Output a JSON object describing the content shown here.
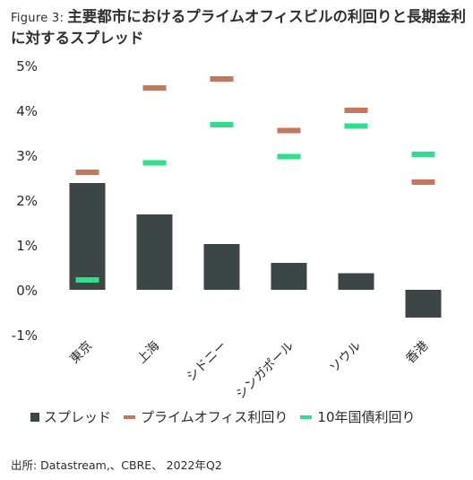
{
  "title": {
    "lead": "Figure 3:",
    "text": "主要都市におけるプライムオフィスビルの利回りと長期金利に対するスプレッド"
  },
  "chart_data": {
    "type": "bar",
    "categories": [
      "東京",
      "上海",
      "シドニー",
      "シンガポール",
      "ソウル",
      "香港"
    ],
    "series": [
      {
        "name": "スプレッド",
        "type": "bar",
        "color": "#3d4646",
        "values": [
          2.38,
          1.68,
          1.02,
          0.6,
          0.37,
          -0.62
        ]
      },
      {
        "name": "プライムオフィス利回り",
        "type": "marker",
        "color": "#c8765a",
        "values": [
          2.62,
          4.5,
          4.7,
          3.55,
          4.0,
          2.4
        ]
      },
      {
        "name": "10年国債利回り",
        "type": "marker",
        "color": "#2de08c",
        "values": [
          0.22,
          2.83,
          3.68,
          2.97,
          3.65,
          3.02
        ]
      }
    ],
    "yticks": [
      "5%",
      "4%",
      "3%",
      "2%",
      "1%",
      "0%",
      "-1%"
    ],
    "ytick_values": [
      5,
      4,
      3,
      2,
      1,
      0,
      -1
    ],
    "ylim": [
      -1,
      5
    ],
    "grid": false,
    "legend_position": "bottom"
  },
  "source": "出所: Datastream,、CBRE、 2022年Q2"
}
